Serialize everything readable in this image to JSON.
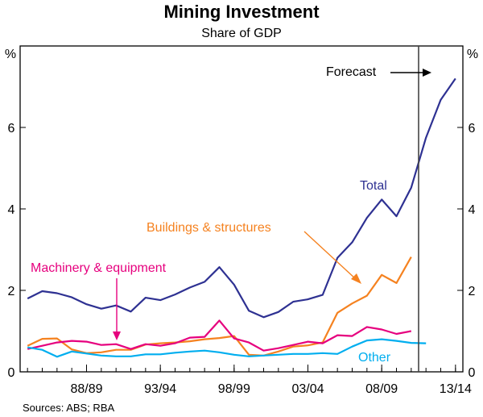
{
  "chart_data": {
    "type": "line",
    "title": "Mining Investment",
    "subtitle": "Share of GDP",
    "ylabel_left": "%",
    "ylabel_right": "%",
    "ylim": [
      0,
      8
    ],
    "yticks": [
      0,
      2,
      4,
      6
    ],
    "xlim": [
      1984.5,
      2014.5
    ],
    "xticks": [
      {
        "x": 1989,
        "label": "88/89"
      },
      {
        "x": 1994,
        "label": "93/94"
      },
      {
        "x": 1999,
        "label": "98/99"
      },
      {
        "x": 2004,
        "label": "03/04"
      },
      {
        "x": 2009,
        "label": "08/09"
      },
      {
        "x": 2014,
        "label": "13/14"
      }
    ],
    "forecast_start": 2011.5,
    "forecast_label": "Forecast",
    "source": "Sources: ABS; RBA",
    "series": [
      {
        "name": "Total",
        "color": "#2e3192",
        "x": [
          1985,
          1986,
          1987,
          1988,
          1989,
          1990,
          1991,
          1992,
          1993,
          1994,
          1995,
          1996,
          1997,
          1998,
          1999,
          2000,
          2001,
          2002,
          2003,
          2004,
          2005,
          2006,
          2007,
          2008,
          2009,
          2010,
          2011,
          2012,
          2013,
          2014
        ],
        "values": [
          1.8,
          1.98,
          1.93,
          1.83,
          1.66,
          1.55,
          1.63,
          1.48,
          1.82,
          1.76,
          1.9,
          2.07,
          2.21,
          2.57,
          2.14,
          1.5,
          1.34,
          1.47,
          1.72,
          1.78,
          1.89,
          2.8,
          3.18,
          3.78,
          4.23,
          3.82,
          4.52,
          5.75,
          6.68,
          7.2
        ]
      },
      {
        "name": "Buildings & structures",
        "color": "#f58220",
        "x": [
          1985,
          1986,
          1987,
          1988,
          1989,
          1990,
          1991,
          1992,
          1993,
          1994,
          1995,
          1996,
          1997,
          1998,
          1999,
          2000,
          2001,
          2002,
          2003,
          2004,
          2005,
          2006,
          2007,
          2008,
          2009,
          2010,
          2011
        ],
        "values": [
          0.64,
          0.81,
          0.82,
          0.55,
          0.46,
          0.48,
          0.54,
          0.54,
          0.67,
          0.7,
          0.72,
          0.75,
          0.8,
          0.83,
          0.88,
          0.42,
          0.4,
          0.5,
          0.62,
          0.65,
          0.72,
          1.45,
          1.68,
          1.87,
          2.38,
          2.18,
          2.82
        ]
      },
      {
        "name": "Machinery & equipment",
        "color": "#e6007e",
        "x": [
          1985,
          1986,
          1987,
          1988,
          1989,
          1990,
          1991,
          1992,
          1993,
          1994,
          1995,
          1996,
          1997,
          1998,
          1999,
          2000,
          2001,
          2002,
          2003,
          2004,
          2005,
          2006,
          2007,
          2008,
          2009,
          2010,
          2011
        ],
        "values": [
          0.56,
          0.64,
          0.72,
          0.76,
          0.74,
          0.66,
          0.68,
          0.56,
          0.68,
          0.64,
          0.7,
          0.84,
          0.86,
          1.26,
          0.82,
          0.72,
          0.52,
          0.58,
          0.66,
          0.74,
          0.7,
          0.9,
          0.88,
          1.1,
          1.04,
          0.93,
          1.0
        ]
      },
      {
        "name": "Other",
        "color": "#00aeef",
        "x": [
          1985,
          1986,
          1987,
          1988,
          1989,
          1990,
          1991,
          1992,
          1993,
          1994,
          1995,
          1996,
          1997,
          1998,
          1999,
          2000,
          2001,
          2002,
          2003,
          2004,
          2005,
          2006,
          2007,
          2008,
          2009,
          2010,
          2011,
          2012
        ],
        "values": [
          0.6,
          0.54,
          0.37,
          0.5,
          0.45,
          0.4,
          0.38,
          0.38,
          0.43,
          0.43,
          0.47,
          0.5,
          0.52,
          0.48,
          0.42,
          0.38,
          0.4,
          0.42,
          0.44,
          0.44,
          0.46,
          0.44,
          0.62,
          0.77,
          0.8,
          0.76,
          0.71,
          0.7
        ]
      }
    ],
    "annotations": [
      {
        "text": "Total",
        "series": "Total"
      },
      {
        "text": "Buildings & structures",
        "series": "Buildings & structures"
      },
      {
        "text": "Machinery & equipment",
        "series": "Machinery & equipment"
      },
      {
        "text": "Other",
        "series": "Other"
      }
    ]
  }
}
